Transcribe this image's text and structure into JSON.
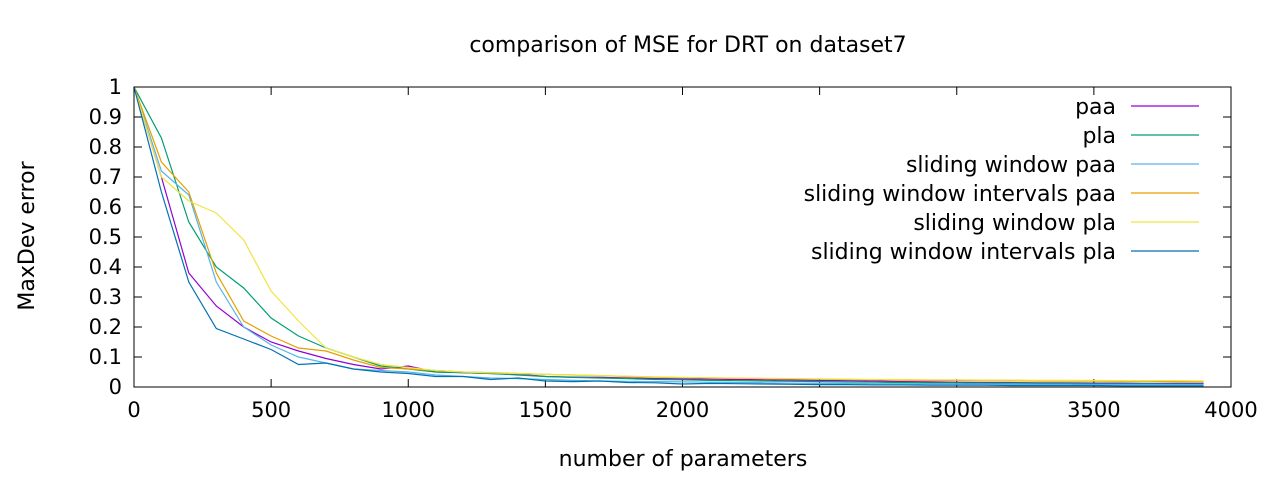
{
  "chart_data": {
    "type": "line",
    "title": "comparison of MSE for DRT on dataset7",
    "xlabel": "number of parameters",
    "ylabel": "MaxDev error",
    "xlim": [
      0,
      4000
    ],
    "ylim": [
      0,
      1
    ],
    "x_ticks": [
      "0",
      "500",
      "1000",
      "1500",
      "2000",
      "2500",
      "3000",
      "3500",
      "4000"
    ],
    "y_ticks": [
      "0",
      "0.1",
      "0.2",
      "0.3",
      "0.4",
      "0.5",
      "0.6",
      "0.7",
      "0.8",
      "0.9",
      "1"
    ],
    "grid": false,
    "legend_position": "top-right",
    "x": [
      0,
      100,
      200,
      300,
      400,
      500,
      600,
      700,
      800,
      900,
      1000,
      1100,
      1200,
      1300,
      1400,
      1500,
      1600,
      1700,
      1800,
      1900,
      2000,
      2100,
      2200,
      2300,
      2400,
      2500,
      2600,
      2700,
      2800,
      2900,
      3000,
      3100,
      3200,
      3300,
      3400,
      3500,
      3600,
      3700,
      3800,
      3900
    ],
    "series": [
      {
        "name": "paa",
        "color": "#9400d3",
        "values": [
          1.0,
          0.7,
          0.38,
          0.27,
          0.2,
          0.15,
          0.12,
          0.095,
          0.075,
          0.06,
          0.07,
          0.05,
          0.048,
          0.045,
          0.043,
          0.035,
          0.033,
          0.032,
          0.03,
          0.028,
          0.027,
          0.026,
          0.025,
          0.024,
          0.023,
          0.022,
          0.021,
          0.02,
          0.018,
          0.017,
          0.016,
          0.015,
          0.015,
          0.014,
          0.014,
          0.013,
          0.013,
          0.012,
          0.012,
          0.012
        ]
      },
      {
        "name": "pla",
        "color": "#009e73",
        "values": [
          1.0,
          0.83,
          0.55,
          0.4,
          0.33,
          0.23,
          0.17,
          0.13,
          0.1,
          0.07,
          0.06,
          0.05,
          0.048,
          0.045,
          0.04,
          0.035,
          0.032,
          0.03,
          0.028,
          0.025,
          0.024,
          0.022,
          0.021,
          0.02,
          0.019,
          0.018,
          0.017,
          0.016,
          0.015,
          0.014,
          0.014,
          0.013,
          0.013,
          0.012,
          0.012,
          0.011,
          0.011,
          0.011,
          0.01,
          0.01
        ]
      },
      {
        "name": "sliding window paa",
        "color": "#56b4e9",
        "values": [
          1.0,
          0.72,
          0.64,
          0.35,
          0.2,
          0.14,
          0.1,
          0.08,
          0.06,
          0.055,
          0.05,
          0.04,
          0.035,
          0.03,
          0.028,
          0.025,
          0.022,
          0.02,
          0.019,
          0.018,
          0.017,
          0.016,
          0.015,
          0.014,
          0.013,
          0.012,
          0.012,
          0.011,
          0.011,
          0.01,
          0.01,
          0.01,
          0.009,
          0.009,
          0.009,
          0.008,
          0.008,
          0.008,
          0.008,
          0.008
        ]
      },
      {
        "name": "sliding window intervals paa",
        "color": "#e69f00",
        "values": [
          1.0,
          0.75,
          0.65,
          0.38,
          0.22,
          0.17,
          0.13,
          0.12,
          0.09,
          0.065,
          0.06,
          0.055,
          0.05,
          0.048,
          0.045,
          0.042,
          0.04,
          0.038,
          0.035,
          0.033,
          0.031,
          0.03,
          0.029,
          0.028,
          0.027,
          0.026,
          0.025,
          0.024,
          0.023,
          0.022,
          0.022,
          0.021,
          0.021,
          0.02,
          0.02,
          0.02,
          0.019,
          0.019,
          0.018,
          0.018
        ]
      },
      {
        "name": "sliding window pla",
        "color": "#f0e442",
        "values": [
          1.0,
          0.7,
          0.62,
          0.58,
          0.49,
          0.32,
          0.22,
          0.13,
          0.1,
          0.075,
          0.065,
          0.055,
          0.05,
          0.047,
          0.045,
          0.042,
          0.04,
          0.038,
          0.036,
          0.034,
          0.032,
          0.031,
          0.03,
          0.029,
          0.028,
          0.027,
          0.026,
          0.025,
          0.025,
          0.024,
          0.024,
          0.023,
          0.023,
          0.022,
          0.022,
          0.022,
          0.021,
          0.021,
          0.021,
          0.02
        ]
      },
      {
        "name": "sliding window intervals pla",
        "color": "#0072b2",
        "values": [
          1.0,
          0.65,
          0.35,
          0.195,
          0.16,
          0.125,
          0.075,
          0.08,
          0.06,
          0.05,
          0.045,
          0.035,
          0.035,
          0.025,
          0.03,
          0.02,
          0.018,
          0.02,
          0.015,
          0.014,
          0.01,
          0.012,
          0.011,
          0.01,
          0.009,
          0.008,
          0.008,
          0.007,
          0.007,
          0.006,
          0.006,
          0.006,
          0.005,
          0.005,
          0.005,
          0.005,
          0.004,
          0.004,
          0.004,
          0.004
        ]
      }
    ]
  }
}
